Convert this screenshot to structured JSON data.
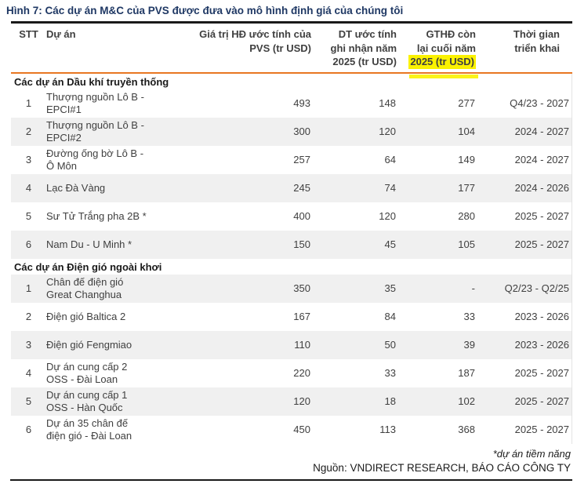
{
  "title": "Hình 7: Các dự án M&C của PVS được đưa vào mô hình định giá của chúng tôi",
  "colors": {
    "accent_orange": "#E87722",
    "highlight_yellow": "#FBF200",
    "title_blue": "#1F3864",
    "row_shade": "#F0F0F0"
  },
  "table": {
    "header": {
      "stt": "STT",
      "project": "Dự án",
      "contract": "Giá trị HĐ ước tính của\nPVS (tr USD)",
      "revenue": "DT ước tính\nghi nhận năm\n2025 (tr USD)",
      "backlog_top": "GTHĐ còn\nlại cuối năm",
      "backlog_highlight": "2025 (tr USD)",
      "timeline": "Thời gian\ntriển khai"
    },
    "sections": [
      {
        "name": "Các dự án Dầu khí truyền thống",
        "rows": [
          {
            "stt": "1",
            "project": "Thượng nguồn Lô B -\nEPCI#1",
            "contract": "493",
            "revenue": "148",
            "backlog": "277",
            "timeline": "Q4/23 - 2027"
          },
          {
            "stt": "2",
            "project": "Thượng nguồn Lô B -\nEPCI#2",
            "contract": "300",
            "revenue": "120",
            "backlog": "104",
            "timeline": "2024 - 2027"
          },
          {
            "stt": "3",
            "project": "Đường ống bờ Lô B -\nÔ Môn",
            "contract": "257",
            "revenue": "64",
            "backlog": "149",
            "timeline": "2024 - 2027"
          },
          {
            "stt": "4",
            "project": "Lạc Đà Vàng",
            "contract": "245",
            "revenue": "74",
            "backlog": "177",
            "timeline": "2024 - 2026"
          },
          {
            "stt": "5",
            "project": "Sư Tử Trắng pha 2B *",
            "contract": "400",
            "revenue": "120",
            "backlog": "280",
            "timeline": "2025 - 2027"
          },
          {
            "stt": "6",
            "project": "Nam Du - U Minh *",
            "contract": "150",
            "revenue": "45",
            "backlog": "105",
            "timeline": "2025 - 2027"
          }
        ]
      },
      {
        "name": "Các dự án Điện gió ngoài khơi",
        "rows": [
          {
            "stt": "1",
            "project": "Chân đế điện gió\nGreat Changhua",
            "contract": "350",
            "revenue": "35",
            "backlog": "-",
            "timeline": "Q2/23 - Q2/25"
          },
          {
            "stt": "2",
            "project": "Điện gió Baltica 2",
            "contract": "167",
            "revenue": "84",
            "backlog": "33",
            "timeline": "2023 - 2026"
          },
          {
            "stt": "3",
            "project": "Điện gió Fengmiao",
            "contract": "110",
            "revenue": "50",
            "backlog": "39",
            "timeline": "2023 - 2026"
          },
          {
            "stt": "4",
            "project": "Dự án cung cấp 2\nOSS - Đài Loan",
            "contract": "220",
            "revenue": "33",
            "backlog": "187",
            "timeline": "2025 - 2027"
          },
          {
            "stt": "5",
            "project": "Dự án cung cấp 1\nOSS - Hàn Quốc",
            "contract": "120",
            "revenue": "18",
            "backlog": "102",
            "timeline": "2025 - 2027"
          },
          {
            "stt": "6",
            "project": "Dự án 35 chân đế\nđiện gió - Đài Loan",
            "contract": "450",
            "revenue": "113",
            "backlog": "368",
            "timeline": "2025 - 2027"
          }
        ]
      }
    ]
  },
  "footer": {
    "footnote": "*dự án tiềm năng",
    "source": "Nguồn: VNDIRECT RESEARCH, BÁO CÁO CÔNG TY"
  }
}
